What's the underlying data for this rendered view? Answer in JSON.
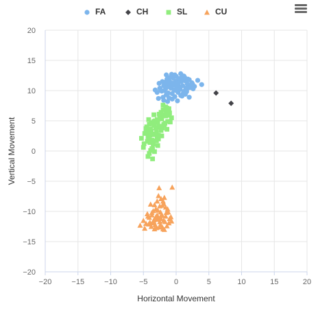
{
  "chart_data": {
    "type": "scatter",
    "title": "",
    "xlabel": "Horizontal Movement",
    "ylabel": "Vertical Movement",
    "xlim": [
      -20,
      20
    ],
    "ylim": [
      -20,
      20
    ],
    "x_ticks": [
      -20,
      -15,
      -10,
      -5,
      0,
      5,
      10,
      15,
      20
    ],
    "y_ticks": [
      -20,
      -15,
      -10,
      -5,
      0,
      5,
      10,
      15,
      20
    ],
    "x_tick_labels": [
      "−20",
      "−15",
      "−10",
      "−5",
      "0",
      "5",
      "10",
      "15",
      "20"
    ],
    "y_tick_labels": [
      "−20",
      "−15",
      "−10",
      "−5",
      "0",
      "5",
      "10",
      "15",
      "20"
    ],
    "grid": true,
    "legend_position": "top-center",
    "series": [
      {
        "name": "FA",
        "color": "#7cb5ec",
        "marker": "circle",
        "x": [
          -2.9,
          -2.5,
          -2.2,
          -1.9,
          -1.6,
          -1.3,
          -1.0,
          -0.7,
          -0.4,
          -0.1,
          0.2,
          0.5,
          0.8,
          1.1,
          1.4,
          1.7,
          2.0,
          2.4,
          2.8,
          3.3,
          3.9,
          -2.0,
          -1.5,
          -1.1,
          -0.6,
          -0.2,
          0.3,
          0.7,
          1.2,
          1.6,
          2.1,
          -2.4,
          -1.8,
          -1.2,
          -0.8,
          -0.3,
          0.1,
          0.6,
          1.0,
          1.5,
          1.9,
          2.5,
          -1.7,
          -1.1,
          -0.5,
          0.0,
          0.4,
          0.9,
          1.3,
          1.8,
          -2.6,
          -2.1,
          -1.4,
          -0.9,
          -0.2,
          0.3,
          0.7,
          1.1,
          1.6,
          2.2,
          -3.2,
          -2.7,
          -1.9,
          -1.3,
          -0.6,
          0.2,
          0.9,
          1.4,
          2.0,
          2.6,
          -1.5,
          -0.7,
          0.0,
          0.6,
          1.2
        ],
        "y": [
          9.7,
          10.4,
          9.9,
          10.8,
          10.3,
          11.0,
          10.6,
          11.3,
          10.9,
          11.6,
          11.2,
          11.9,
          11.5,
          12.0,
          11.6,
          11.1,
          11.8,
          11.3,
          10.7,
          11.7,
          11.0,
          8.9,
          9.3,
          8.8,
          9.5,
          9.0,
          9.7,
          9.2,
          9.9,
          10.1,
          10.5,
          10.2,
          10.0,
          9.6,
          10.4,
          10.1,
          10.7,
          10.2,
          10.8,
          10.4,
          10.9,
          11.1,
          11.4,
          11.7,
          12.1,
          12.4,
          12.0,
          12.5,
          12.2,
          11.9,
          11.2,
          11.5,
          11.9,
          12.2,
          12.6,
          11.0,
          12.8,
          9.6,
          9.8,
          10.6,
          10.1,
          8.7,
          8.4,
          8.2,
          8.6,
          8.3,
          9.1,
          9.4,
          8.9,
          10.3,
          12.6,
          12.7,
          10.0,
          10.5,
          12.4
        ]
      },
      {
        "name": "CH",
        "color": "#434348",
        "marker": "diamond",
        "x": [
          6.1,
          8.4
        ],
        "y": [
          9.6,
          7.9
        ]
      },
      {
        "name": "SL",
        "color": "#90ed7d",
        "marker": "square",
        "x": [
          -5.3,
          -4.9,
          -4.6,
          -4.3,
          -4.0,
          -3.7,
          -3.4,
          -3.1,
          -2.8,
          -2.5,
          -2.2,
          -1.9,
          -1.6,
          -1.3,
          -1.0,
          -0.7,
          -5.0,
          -4.5,
          -4.1,
          -3.8,
          -3.5,
          -3.2,
          -2.9,
          -2.6,
          -2.3,
          -2.0,
          -1.7,
          -1.4,
          -1.1,
          -4.8,
          -4.4,
          -4.0,
          -3.6,
          -3.3,
          -3.0,
          -2.7,
          -2.4,
          -2.1,
          -1.8,
          -1.5,
          -4.2,
          -3.9,
          -3.5,
          -3.1,
          -2.8,
          -2.5,
          -2.2,
          -1.9,
          -1.6,
          -1.2,
          -0.9,
          -4.6,
          -4.2,
          -3.8,
          -3.4,
          -3.9,
          -3.6,
          -4.3,
          -4.0,
          -3.7,
          -3.3,
          -3.0,
          -2.6,
          -2.3,
          -2.0,
          -1.4,
          -2.9,
          -3.4,
          -4.1,
          -4.5,
          -1.1,
          -2.7
        ],
        "y": [
          2.1,
          1.2,
          3.0,
          2.4,
          3.6,
          1.8,
          4.2,
          2.8,
          4.8,
          3.9,
          5.3,
          4.4,
          5.8,
          4.9,
          6.3,
          5.5,
          0.6,
          4.0,
          -0.4,
          3.3,
          1.1,
          5.0,
          2.2,
          6.1,
          3.4,
          6.8,
          4.6,
          7.1,
          5.9,
          2.9,
          1.6,
          2.6,
          0.3,
          4.5,
          3.1,
          2.0,
          5.4,
          3.8,
          4.3,
          6.5,
          1.9,
          3.5,
          2.7,
          3.8,
          0.9,
          5.6,
          2.5,
          6.0,
          7.3,
          6.7,
          4.8,
          3.7,
          5.2,
          4.7,
          6.0,
          0.1,
          -1.3,
          -0.9,
          1.4,
          0.4,
          -0.1,
          1.7,
          4.1,
          6.4,
          7.6,
          3.6,
          5.2,
          4.9,
          4.4,
          3.2,
          7.0,
          2.6
        ]
      },
      {
        "name": "CU",
        "color": "#f7a35c",
        "marker": "triangle",
        "x": [
          -5.5,
          -5.0,
          -4.6,
          -4.3,
          -4.0,
          -3.7,
          -3.4,
          -3.1,
          -2.8,
          -2.5,
          -2.2,
          -1.9,
          -1.6,
          -1.3,
          -1.0,
          -0.6,
          -4.8,
          -4.4,
          -4.1,
          -3.8,
          -3.5,
          -3.2,
          -2.9,
          -2.6,
          -2.3,
          -2.0,
          -1.7,
          -1.4,
          -1.1,
          -0.8,
          -3.9,
          -3.6,
          -3.3,
          -3.0,
          -2.7,
          -2.4,
          -2.1,
          -1.8,
          -1.5,
          -2.6,
          -2.9,
          -3.3,
          -2.2,
          -1.9,
          -2.5,
          -2.8,
          -2.0,
          -3.0,
          -1.6,
          -4.2,
          -3.7,
          -2.3,
          -1.2,
          -0.7,
          -3.1,
          -2.7,
          -2.4,
          -2.1,
          -3.4,
          -1.8
        ],
        "y": [
          -12.3,
          -11.5,
          -12.0,
          -10.8,
          -11.8,
          -10.2,
          -11.4,
          -9.6,
          -10.9,
          -9.1,
          -10.5,
          -8.7,
          -10.8,
          -9.6,
          -11.2,
          -6.0,
          -12.8,
          -10.4,
          -11.0,
          -12.5,
          -9.9,
          -12.2,
          -10.6,
          -12.6,
          -11.2,
          -12.9,
          -11.7,
          -12.4,
          -11.9,
          -10.9,
          -8.8,
          -11.9,
          -8.9,
          -11.3,
          -7.4,
          -10.1,
          -9.0,
          -7.7,
          -10.2,
          -6.1,
          -8.3,
          -12.9,
          -10.7,
          -11.5,
          -11.7,
          -9.8,
          -8.3,
          -12.7,
          -9.3,
          -12.1,
          -10.6,
          -7.9,
          -10.1,
          -11.6,
          -10.9,
          -11.1,
          -12.2,
          -12.6,
          -11.7,
          -13.0
        ]
      }
    ]
  },
  "ui": {
    "menu_label": "Chart context menu"
  }
}
